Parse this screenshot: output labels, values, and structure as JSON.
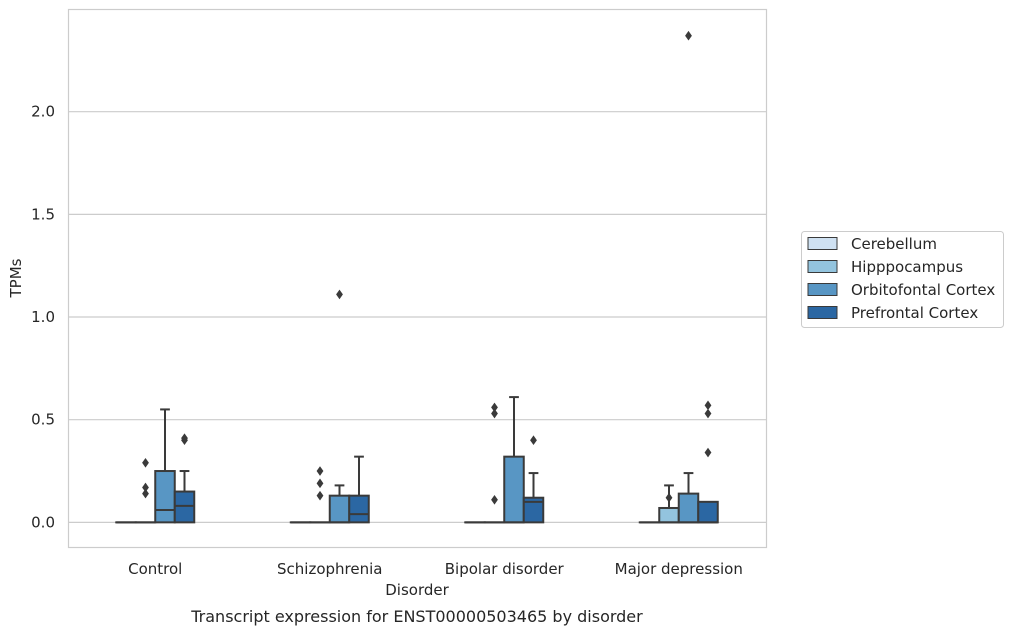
{
  "chart_data": {
    "type": "box",
    "caption": "Transcript expression for ENST00000503465 by disorder",
    "xlabel": "Disorder",
    "ylabel": "TPMs",
    "categories": [
      "Control",
      "Schizophrenia",
      "Bipolar disorder",
      "Major depression"
    ],
    "yticks": [
      0.0,
      0.5,
      1.0,
      1.5,
      2.0
    ],
    "ytick_labels": [
      "0.0",
      "0.5",
      "1.0",
      "1.5",
      "2.0"
    ],
    "ylim": [
      -0.12,
      2.5
    ],
    "grid": "horizontal",
    "legend": {
      "placement": "right"
    },
    "series": [
      {
        "name": "Cerebellum",
        "color": "#cfe1f2",
        "boxes": [
          {
            "q1": 0.0,
            "median": 0.0,
            "q3": 0.0,
            "whisker_low": 0.0,
            "whisker_high": 0.0,
            "outliers": []
          },
          {
            "q1": 0.0,
            "median": 0.0,
            "q3": 0.0,
            "whisker_low": 0.0,
            "whisker_high": 0.0,
            "outliers": []
          },
          {
            "q1": 0.0,
            "median": 0.0,
            "q3": 0.0,
            "whisker_low": 0.0,
            "whisker_high": 0.0,
            "outliers": []
          },
          {
            "q1": 0.0,
            "median": 0.0,
            "q3": 0.0,
            "whisker_low": 0.0,
            "whisker_high": 0.0,
            "outliers": []
          }
        ]
      },
      {
        "name": "Hipppocampus",
        "color": "#93c4de",
        "boxes": [
          {
            "q1": 0.0,
            "median": 0.0,
            "q3": 0.0,
            "whisker_low": 0.0,
            "whisker_high": 0.0,
            "outliers": [
              0.29,
              0.17,
              0.14
            ]
          },
          {
            "q1": 0.0,
            "median": 0.0,
            "q3": 0.0,
            "whisker_low": 0.0,
            "whisker_high": 0.0,
            "outliers": [
              0.25,
              0.19,
              0.13
            ]
          },
          {
            "q1": 0.0,
            "median": 0.0,
            "q3": 0.0,
            "whisker_low": 0.0,
            "whisker_high": 0.0,
            "outliers": [
              0.56,
              0.53,
              0.11
            ]
          },
          {
            "q1": 0.0,
            "median": 0.0,
            "q3": 0.07,
            "whisker_low": 0.0,
            "whisker_high": 0.18,
            "outliers": [
              0.12
            ]
          }
        ]
      },
      {
        "name": "Orbitofontal Cortex",
        "color": "#5896c4",
        "boxes": [
          {
            "q1": 0.0,
            "median": 0.06,
            "q3": 0.25,
            "whisker_low": 0.0,
            "whisker_high": 0.55,
            "outliers": []
          },
          {
            "q1": 0.0,
            "median": 0.0,
            "q3": 0.13,
            "whisker_low": 0.0,
            "whisker_high": 0.18,
            "outliers": [
              1.11
            ]
          },
          {
            "q1": 0.0,
            "median": 0.0,
            "q3": 0.32,
            "whisker_low": 0.0,
            "whisker_high": 0.61,
            "outliers": []
          },
          {
            "q1": 0.0,
            "median": 0.0,
            "q3": 0.14,
            "whisker_low": 0.0,
            "whisker_high": 0.24,
            "outliers": [
              2.37
            ]
          }
        ]
      },
      {
        "name": "Prefrontal Cortex",
        "color": "#2b67a3",
        "boxes": [
          {
            "q1": 0.0,
            "median": 0.08,
            "q3": 0.15,
            "whisker_low": 0.0,
            "whisker_high": 0.25,
            "outliers": [
              0.41,
              0.4
            ]
          },
          {
            "q1": 0.0,
            "median": 0.04,
            "q3": 0.13,
            "whisker_low": 0.0,
            "whisker_high": 0.32,
            "outliers": []
          },
          {
            "q1": 0.0,
            "median": 0.1,
            "q3": 0.12,
            "whisker_low": 0.0,
            "whisker_high": 0.24,
            "outliers": [
              0.4
            ]
          },
          {
            "q1": 0.0,
            "median": 0.0,
            "q3": 0.1,
            "whisker_low": 0.0,
            "whisker_high": 0.1,
            "outliers": [
              0.57,
              0.53,
              0.34
            ]
          }
        ]
      }
    ]
  }
}
